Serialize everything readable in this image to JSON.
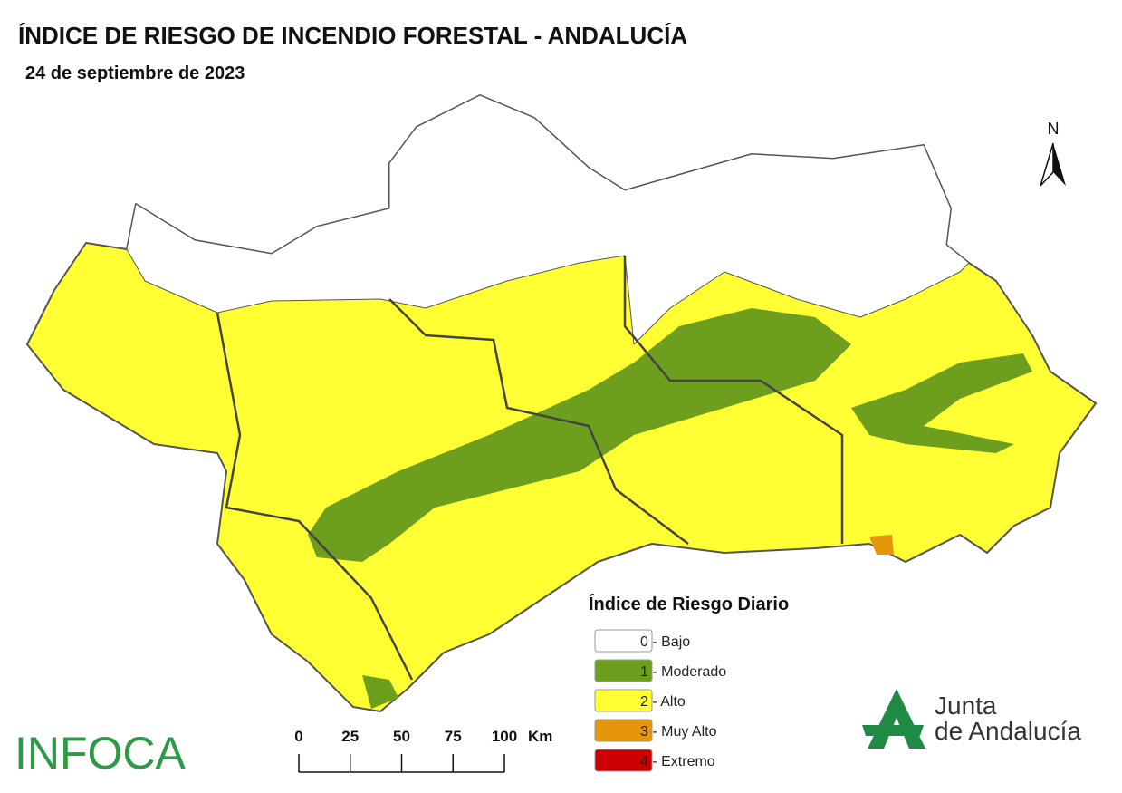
{
  "header": {
    "title": "ÍNDICE DE RIESGO DE INCENDIO FORESTAL - ANDALUCÍA",
    "date": "24 de septiembre de 2023"
  },
  "legend": {
    "title": "Índice de Riesgo Diario",
    "items": [
      {
        "label": "0 - Bajo",
        "color": "#ffffff"
      },
      {
        "label": "1 - Moderado",
        "color": "#6e9e1e"
      },
      {
        "label": "2 - Alto",
        "color": "#ffff33"
      },
      {
        "label": "3 - Muy Alto",
        "color": "#e6960a"
      },
      {
        "label": "4 - Extremo",
        "color": "#cc0000"
      }
    ]
  },
  "scale_bar": {
    "ticks": [
      0,
      25,
      50,
      75,
      100
    ],
    "unit": "Km"
  },
  "north_arrow": {
    "label": "N"
  },
  "logos": {
    "infoca": "INFOCA",
    "junta": [
      "Junta",
      "de Andalucía"
    ]
  }
}
